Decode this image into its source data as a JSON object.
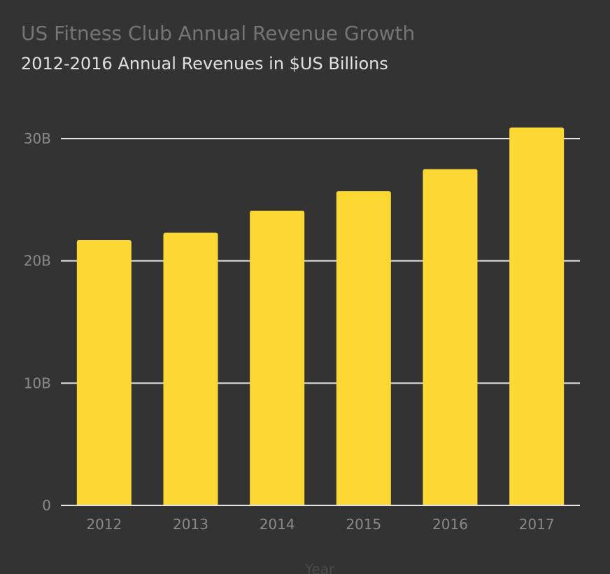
{
  "colors": {
    "background": "#333333",
    "bar": "#fdd835",
    "gridline": "#e6e6e6",
    "title": "#757575",
    "subtitle": "#e0e0e0",
    "tick_label": "#8a8a8a",
    "axis_title": "#4a4a4a"
  },
  "chart_data": {
    "type": "bar",
    "title": "US Fitness Club Annual Revenue Growth",
    "subtitle": "2012-2016 Annual Revenues in $US Billions",
    "xlabel": "Year",
    "ylabel": "",
    "categories": [
      "2012",
      "2013",
      "2014",
      "2015",
      "2016",
      "2017"
    ],
    "values": [
      21.7,
      22.3,
      24.1,
      25.7,
      27.5,
      30.9
    ],
    "ylim": [
      0,
      30
    ],
    "yticks": [
      0,
      10,
      20,
      30
    ],
    "ytick_labels": [
      "0",
      "10B",
      "20B",
      "30B"
    ],
    "grid": true,
    "legend": "none"
  }
}
